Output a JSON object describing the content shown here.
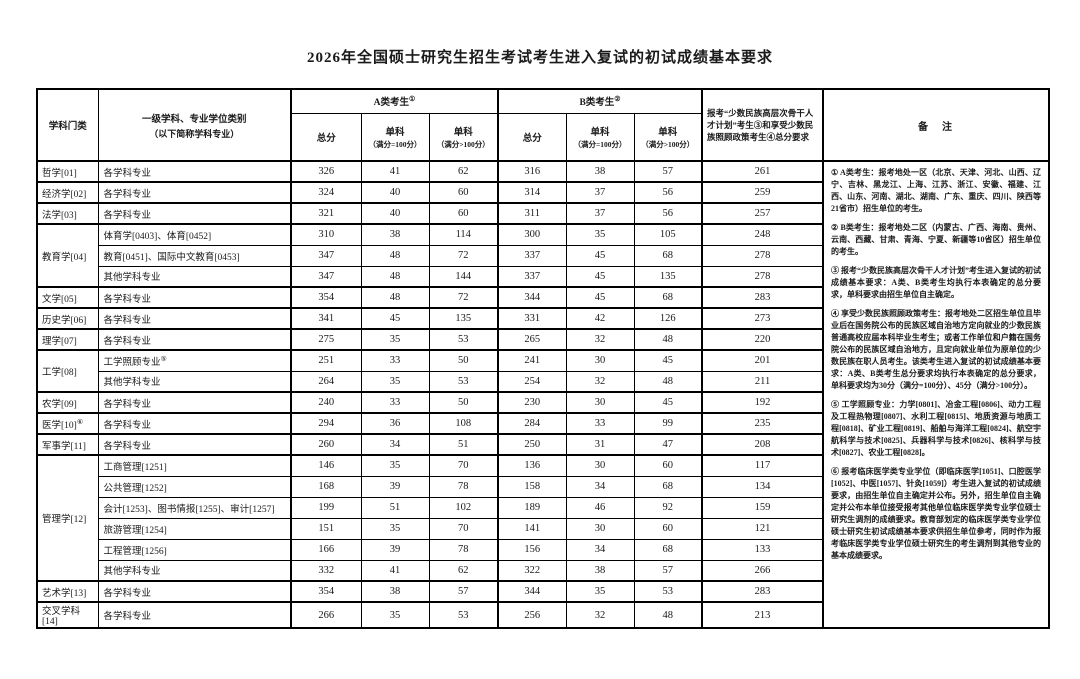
{
  "page": {
    "title": "2026年全国硕士研究生招生考试考生进入复试的初试成绩基本要求"
  },
  "table": {
    "header": {
      "subject_category": "学科门类",
      "discipline_line1": "一级学科、专业学位类别",
      "discipline_line2": "（以下简称学科专业）",
      "group_a_label": "A类考生",
      "group_a_sup": "①",
      "group_b_label": "B类考生",
      "group_b_sup": "②",
      "col_total": "总分",
      "col_single": "单科",
      "col_single_eq100_note": "（满分=100分）",
      "col_single_gt100_note": "（满分>100分）",
      "minority_header": "报考“少数民族高层次骨干人才计划”考生③和享受少数民族照顾政策考生④总分要求",
      "remarks_header": "备　注"
    },
    "groups": [
      {
        "category": "哲学[01]",
        "category_sup": "",
        "rows": [
          {
            "discipline": "各学科专业",
            "sup": "",
            "values": [
              "326",
              "41",
              "62",
              "316",
              "38",
              "57",
              "261"
            ]
          }
        ]
      },
      {
        "category": "经济学[02]",
        "category_sup": "",
        "rows": [
          {
            "discipline": "各学科专业",
            "sup": "",
            "values": [
              "324",
              "40",
              "60",
              "314",
              "37",
              "56",
              "259"
            ]
          }
        ]
      },
      {
        "category": "法学[03]",
        "category_sup": "",
        "rows": [
          {
            "discipline": "各学科专业",
            "sup": "",
            "values": [
              "321",
              "40",
              "60",
              "311",
              "37",
              "56",
              "257"
            ]
          }
        ]
      },
      {
        "category": "教育学[04]",
        "category_sup": "",
        "rows": [
          {
            "discipline": "体育学[0403]、体育[0452]",
            "sup": "",
            "values": [
              "310",
              "38",
              "114",
              "300",
              "35",
              "105",
              "248"
            ]
          },
          {
            "discipline": "教育[0451]、国际中文教育[0453]",
            "sup": "",
            "values": [
              "347",
              "48",
              "72",
              "337",
              "45",
              "68",
              "278"
            ]
          },
          {
            "discipline": "其他学科专业",
            "sup": "",
            "values": [
              "347",
              "48",
              "144",
              "337",
              "45",
              "135",
              "278"
            ]
          }
        ]
      },
      {
        "category": "文学[05]",
        "category_sup": "",
        "rows": [
          {
            "discipline": "各学科专业",
            "sup": "",
            "values": [
              "354",
              "48",
              "72",
              "344",
              "45",
              "68",
              "283"
            ]
          }
        ]
      },
      {
        "category": "历史学[06]",
        "category_sup": "",
        "rows": [
          {
            "discipline": "各学科专业",
            "sup": "",
            "values": [
              "341",
              "45",
              "135",
              "331",
              "42",
              "126",
              "273"
            ]
          }
        ]
      },
      {
        "category": "理学[07]",
        "category_sup": "",
        "rows": [
          {
            "discipline": "各学科专业",
            "sup": "",
            "values": [
              "275",
              "35",
              "53",
              "265",
              "32",
              "48",
              "220"
            ]
          }
        ]
      },
      {
        "category": "工学[08]",
        "category_sup": "",
        "rows": [
          {
            "discipline": "工学照顾专业",
            "sup": "⑤",
            "values": [
              "251",
              "33",
              "50",
              "241",
              "30",
              "45",
              "201"
            ]
          },
          {
            "discipline": "其他学科专业",
            "sup": "",
            "values": [
              "264",
              "35",
              "53",
              "254",
              "32",
              "48",
              "211"
            ]
          }
        ]
      },
      {
        "category": "农学[09]",
        "category_sup": "",
        "rows": [
          {
            "discipline": "各学科专业",
            "sup": "",
            "values": [
              "240",
              "33",
              "50",
              "230",
              "30",
              "45",
              "192"
            ]
          }
        ]
      },
      {
        "category": "医学[10]",
        "category_sup": "⑥",
        "rows": [
          {
            "discipline": "各学科专业",
            "sup": "",
            "values": [
              "294",
              "36",
              "108",
              "284",
              "33",
              "99",
              "235"
            ]
          }
        ]
      },
      {
        "category": "军事学[11]",
        "category_sup": "",
        "rows": [
          {
            "discipline": "各学科专业",
            "sup": "",
            "values": [
              "260",
              "34",
              "51",
              "250",
              "31",
              "47",
              "208"
            ]
          }
        ]
      },
      {
        "category": "管理学[12]",
        "category_sup": "",
        "rows": [
          {
            "discipline": "工商管理[1251]",
            "sup": "",
            "values": [
              "146",
              "35",
              "70",
              "136",
              "30",
              "60",
              "117"
            ]
          },
          {
            "discipline": "公共管理[1252]",
            "sup": "",
            "values": [
              "168",
              "39",
              "78",
              "158",
              "34",
              "68",
              "134"
            ]
          },
          {
            "discipline": "会计[1253]、图书情报[1255]、审计[1257]",
            "sup": "",
            "values": [
              "199",
              "51",
              "102",
              "189",
              "46",
              "92",
              "159"
            ]
          },
          {
            "discipline": "旅游管理[1254]",
            "sup": "",
            "values": [
              "151",
              "35",
              "70",
              "141",
              "30",
              "60",
              "121"
            ]
          },
          {
            "discipline": "工程管理[1256]",
            "sup": "",
            "values": [
              "166",
              "39",
              "78",
              "156",
              "34",
              "68",
              "133"
            ]
          },
          {
            "discipline": "其他学科专业",
            "sup": "",
            "values": [
              "332",
              "41",
              "62",
              "322",
              "38",
              "57",
              "266"
            ]
          }
        ]
      },
      {
        "category": "艺术学[13]",
        "category_sup": "",
        "rows": [
          {
            "discipline": "各学科专业",
            "sup": "",
            "values": [
              "354",
              "38",
              "57",
              "344",
              "35",
              "53",
              "283"
            ]
          }
        ]
      },
      {
        "category": "交叉学科[14]",
        "category_sup": "",
        "rows": [
          {
            "discipline": "各学科专业",
            "sup": "",
            "values": [
              "266",
              "35",
              "53",
              "256",
              "32",
              "48",
              "213"
            ]
          }
        ]
      }
    ],
    "remarks": [
      "① A类考生：报考地处一区（北京、天津、河北、山西、辽宁、吉林、黑龙江、上海、江苏、浙江、安徽、福建、江西、山东、河南、湖北、湖南、广东、重庆、四川、陕西等21省市）招生单位的考生。",
      "② B类考生：报考地处二区（内蒙古、广西、海南、贵州、云南、西藏、甘肃、青海、宁夏、新疆等10省区）招生单位的考生。",
      "③ 报考“少数民族高层次骨干人才计划”考生进入复试的初试成绩基本要求：A类、B类考生均执行本表确定的总分要求，单科要求由招生单位自主确定。",
      "④ 享受少数民族照顾政策考生：报考地处二区招生单位且毕业后在国务院公布的民族区域自治地方定向就业的少数民族普通高校应届本科毕业生考生；或者工作单位和户籍在国务院公布的民族区域自治地方，且定向就业单位为原单位的少数民族在职人员考生。该类考生进入复试的初试成绩基本要求：A类、B类考生总分要求均执行本表确定的总分要求，单科要求均为30分（满分=100分）、45分（满分>100分）。",
      "⑤ 工学照顾专业：力学[0801]、冶金工程[0806]、动力工程及工程热物理[0807]、水利工程[0815]、地质资源与地质工程[0818]、矿业工程[0819]、船舶与海洋工程[0824]、航空宇航科学与技术[0825]、兵器科学与技术[0826]、核科学与技术[0827]、农业工程[0828]。",
      "⑥ 报考临床医学类专业学位（即临床医学[1051]、口腔医学[1052]、中医[1057]、针灸[1059]）考生进入复试的初试成绩要求，由招生单位自主确定并公布。另外，招生单位自主确定并公布本单位接受报考其他单位临床医学类专业学位硕士研究生调剂的成绩要求。教育部划定的临床医学类专业学位硕士研究生初试成绩基本要求供招生单位参考，同时作为报考临床医学类专业学位硕士研究生的考生调剂到其他专业的基本成绩要求。"
    ]
  }
}
